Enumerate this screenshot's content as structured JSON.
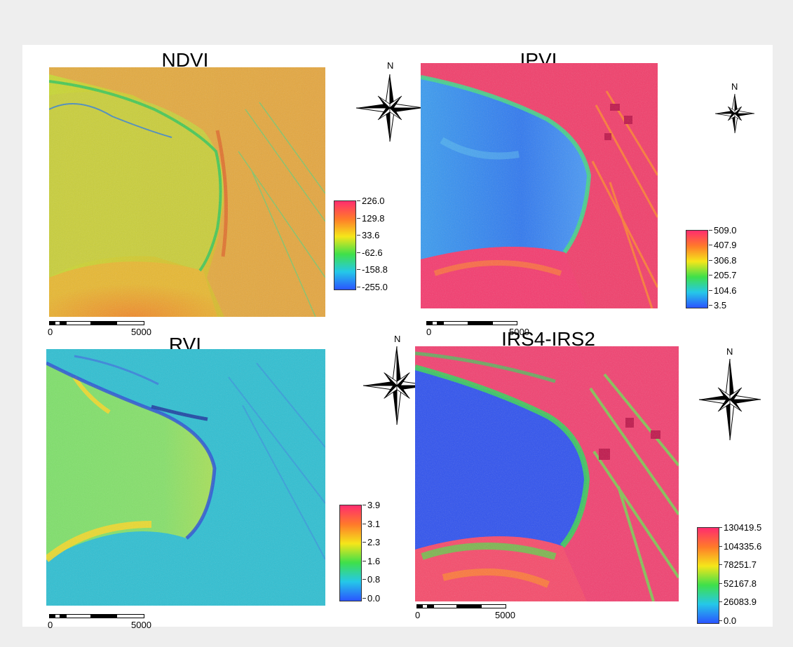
{
  "panels": [
    {
      "id": "ndvi",
      "title": "NDVI",
      "legend_ticks": [
        "226.0",
        "129.8",
        "33.6",
        "-62.6",
        "-158.8",
        "-255.0"
      ],
      "scalebar": {
        "start": "0",
        "end": "5000"
      },
      "north_label": "N"
    },
    {
      "id": "ipvi",
      "title": "IPVI",
      "legend_ticks": [
        "509.0",
        "407.9",
        "306.8",
        "205.7",
        "104.6",
        "3.5"
      ],
      "scalebar": {
        "start": "0",
        "end": "5000"
      },
      "north_label": "N"
    },
    {
      "id": "rvi",
      "title": "RVI",
      "legend_ticks": [
        "3.9",
        "3.1",
        "2.3",
        "1.6",
        "0.8",
        "0.0"
      ],
      "scalebar": {
        "start": "0",
        "end": "5000"
      },
      "north_label": "N"
    },
    {
      "id": "irs",
      "title": "IRS4-IRS2",
      "legend_ticks": [
        "130419.5",
        "104335.6",
        "78251.7",
        "52167.8",
        "26083.9",
        "0.0"
      ],
      "scalebar": {
        "start": "0",
        "end": "5000"
      },
      "north_label": "N"
    }
  ],
  "colors": {
    "ramp_top": "#ff2d6e",
    "ramp_upper": "#ff7a2a",
    "ramp_mid": "#f5e61a",
    "ramp_low_mid": "#3fe04a",
    "ramp_lower": "#25c8e8",
    "ramp_bottom": "#2a55ff",
    "page_background": "#eeeeee",
    "sheet_background": "#ffffff"
  }
}
